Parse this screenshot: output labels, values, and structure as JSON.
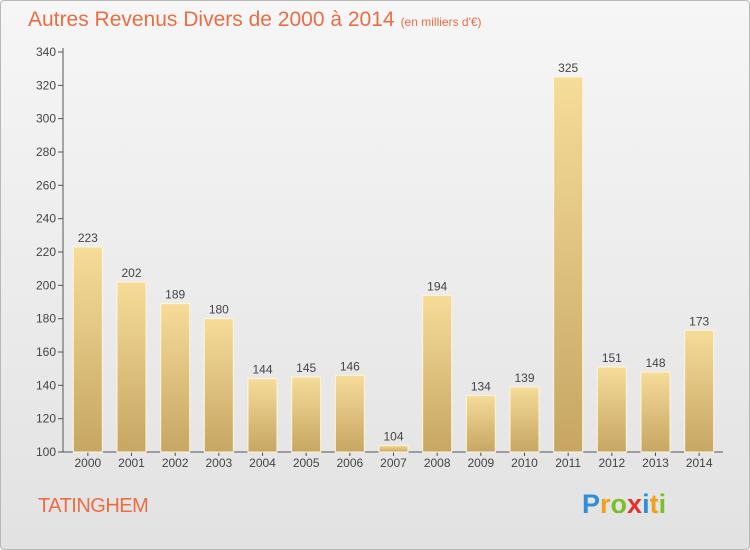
{
  "header": {
    "title": "Autres Revenus Divers de 2000 à 2014",
    "subtitle": "(en milliers d'€)"
  },
  "commune": "TATINGHEM",
  "logo": {
    "text": "Proxiti",
    "letters": [
      {
        "char": "P",
        "color": "#2f8fd8"
      },
      {
        "char": "r",
        "color": "#f2a019"
      },
      {
        "char": "o",
        "color": "#7bbf2a"
      },
      {
        "char": "x",
        "color": "#e5312d"
      },
      {
        "char": "i",
        "color": "#2f8fd8"
      },
      {
        "char": "t",
        "color": "#f2a019"
      },
      {
        "char": "i",
        "color": "#7bbf2a"
      }
    ]
  },
  "colors": {
    "title": "#ea6d45",
    "bar_top": "#f6dc99",
    "bar_bottom": "#c6a662",
    "axis": "#555555"
  },
  "chart_data": {
    "type": "bar",
    "title": "Autres Revenus Divers de 2000 à 2014",
    "categories": [
      "2000",
      "2001",
      "2002",
      "2003",
      "2004",
      "2005",
      "2006",
      "2007",
      "2008",
      "2009",
      "2010",
      "2011",
      "2012",
      "2013",
      "2014"
    ],
    "values": [
      223,
      202,
      189,
      180,
      144,
      145,
      146,
      104,
      194,
      134,
      139,
      325,
      151,
      148,
      173
    ],
    "ylim": [
      100,
      340
    ],
    "yticks": [
      100,
      120,
      140,
      160,
      180,
      200,
      220,
      240,
      260,
      280,
      300,
      320,
      340
    ],
    "xlabel": "",
    "ylabel": "",
    "grid": false,
    "legend": "none"
  }
}
